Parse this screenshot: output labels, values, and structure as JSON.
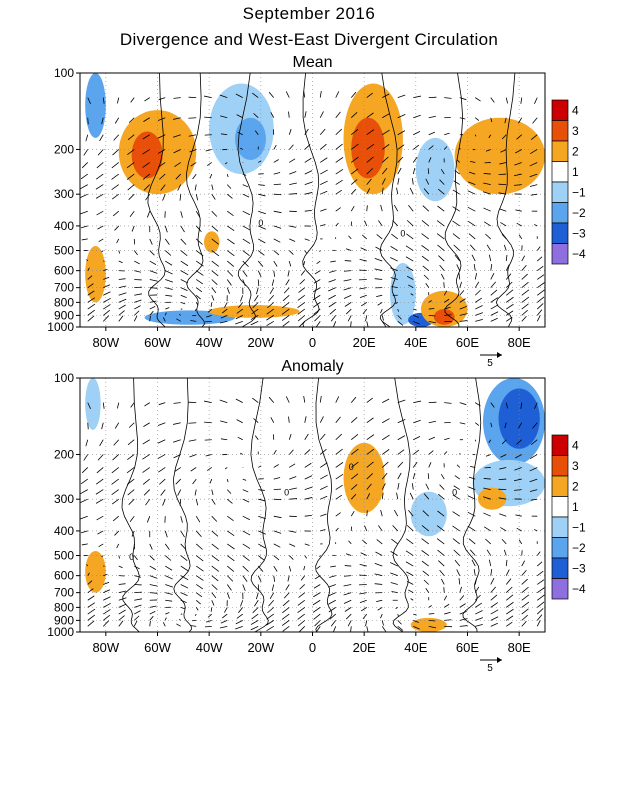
{
  "title": "September 2016",
  "subtitle": "Divergence and West-East Divergent Circulation",
  "colors": {
    "4": "#cc0000",
    "3": "#e8500a",
    "2": "#f5a623",
    "1": "#ffffff",
    "-1": "#9fd0f5",
    "-2": "#5aa5ee",
    "-3": "#1f5fd6",
    "-4": "#8f6fe0"
  },
  "chart_data": [
    {
      "type": "heatmap",
      "title": "Mean",
      "x_ticks": [
        "80W",
        "60W",
        "40W",
        "20W",
        "0",
        "20E",
        "40E",
        "60E",
        "80E"
      ],
      "x_tick_values": [
        -80,
        -60,
        -40,
        -20,
        0,
        20,
        40,
        60,
        80
      ],
      "xlim": [
        -90,
        90
      ],
      "y_ticks": [
        "100",
        "200",
        "300",
        "400",
        "500",
        "600",
        "700",
        "800",
        "900",
        "1000"
      ],
      "y_tick_values": [
        100,
        200,
        300,
        400,
        500,
        600,
        700,
        800,
        900,
        1000
      ],
      "ylim": [
        100,
        1000
      ],
      "y_scale": "log",
      "colorbar_labels": [
        "4",
        "3",
        "2",
        "1",
        "−1",
        "−2",
        "−3",
        "−4"
      ],
      "colorbar_levels": [
        4,
        3,
        2,
        1,
        -1,
        -2,
        -3,
        -4
      ],
      "vector_reference_label": "5",
      "contour_labels": [
        "0",
        "0"
      ],
      "regions": [
        {
          "lon": [
            -75,
            -45
          ],
          "p": [
            140,
            300
          ],
          "level": 2
        },
        {
          "lon": [
            -70,
            -58
          ],
          "p": [
            170,
            260
          ],
          "level": 3
        },
        {
          "lon": [
            12,
            35
          ],
          "p": [
            110,
            300
          ],
          "level": 2
        },
        {
          "lon": [
            15,
            28
          ],
          "p": [
            150,
            260
          ],
          "level": 3
        },
        {
          "lon": [
            55,
            90
          ],
          "p": [
            150,
            300
          ],
          "level": 2
        },
        {
          "lon": [
            -40,
            -15
          ],
          "p": [
            110,
            250
          ],
          "level": -1
        },
        {
          "lon": [
            -30,
            -18
          ],
          "p": [
            150,
            220
          ],
          "level": -2
        },
        {
          "lon": [
            40,
            55
          ],
          "p": [
            180,
            320
          ],
          "level": -1
        },
        {
          "lon": [
            -88,
            -80
          ],
          "p": [
            100,
            180
          ],
          "level": -2
        },
        {
          "lon": [
            -88,
            -80
          ],
          "p": [
            480,
            800
          ],
          "level": 2
        },
        {
          "lon": [
            -42,
            -36
          ],
          "p": [
            420,
            510
          ],
          "level": 2
        },
        {
          "lon": [
            -65,
            -30
          ],
          "p": [
            860,
            980
          ],
          "level": -2
        },
        {
          "lon": [
            -40,
            -5
          ],
          "p": [
            820,
            920
          ],
          "level": 2
        },
        {
          "lon": [
            30,
            40
          ],
          "p": [
            560,
            980
          ],
          "level": -1
        },
        {
          "lon": [
            37,
            47
          ],
          "p": [
            880,
            1000
          ],
          "level": -3
        },
        {
          "lon": [
            42,
            60
          ],
          "p": [
            720,
            1000
          ],
          "level": 2
        },
        {
          "lon": [
            47,
            55
          ],
          "p": [
            850,
            980
          ],
          "level": 3
        }
      ]
    },
    {
      "type": "heatmap",
      "title": "Anomaly",
      "x_ticks": [
        "80W",
        "60W",
        "40W",
        "20W",
        "0",
        "20E",
        "40E",
        "60E",
        "80E"
      ],
      "x_tick_values": [
        -80,
        -60,
        -40,
        -20,
        0,
        20,
        40,
        60,
        80
      ],
      "xlim": [
        -90,
        90
      ],
      "y_ticks": [
        "100",
        "200",
        "300",
        "400",
        "500",
        "600",
        "700",
        "800",
        "900",
        "1000"
      ],
      "y_tick_values": [
        100,
        200,
        300,
        400,
        500,
        600,
        700,
        800,
        900,
        1000
      ],
      "ylim": [
        100,
        1000
      ],
      "y_scale": "log",
      "colorbar_labels": [
        "4",
        "3",
        "2",
        "1",
        "−1",
        "−2",
        "−3",
        "−4"
      ],
      "colorbar_levels": [
        4,
        3,
        2,
        1,
        -1,
        -2,
        -3,
        -4
      ],
      "vector_reference_label": "5",
      "contour_labels": [
        "0",
        "0",
        "0",
        "0"
      ],
      "regions": [
        {
          "lon": [
            12,
            28
          ],
          "p": [
            180,
            340
          ],
          "level": 2
        },
        {
          "lon": [
            66,
            90
          ],
          "p": [
            100,
            220
          ],
          "level": -2
        },
        {
          "lon": [
            72,
            88
          ],
          "p": [
            110,
            190
          ],
          "level": -3
        },
        {
          "lon": [
            62,
            90
          ],
          "p": [
            210,
            320
          ],
          "level": -1
        },
        {
          "lon": [
            64,
            75
          ],
          "p": [
            270,
            330
          ],
          "level": 2
        },
        {
          "lon": [
            38,
            52
          ],
          "p": [
            280,
            420
          ],
          "level": -1
        },
        {
          "lon": [
            -88,
            -80
          ],
          "p": [
            480,
            700
          ],
          "level": 2
        },
        {
          "lon": [
            38,
            52
          ],
          "p": [
            880,
            1000
          ],
          "level": 2
        },
        {
          "lon": [
            -88,
            -82
          ],
          "p": [
            100,
            160
          ],
          "level": -1
        }
      ]
    }
  ]
}
